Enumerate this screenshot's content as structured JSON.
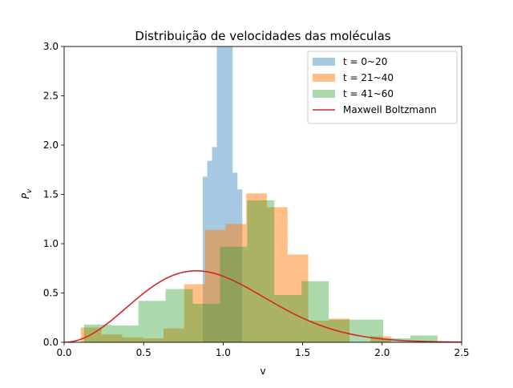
{
  "chart_data": {
    "type": "bar",
    "title": "Distribuição de velocidades das moléculas",
    "xlabel": "v",
    "ylabel_base": "P",
    "ylabel_sub": "v",
    "xlim": [
      0,
      2.5
    ],
    "ylim": [
      0,
      3.0
    ],
    "xticks": [
      0.0,
      0.5,
      1.0,
      1.5,
      2.0,
      2.5
    ],
    "xtick_labels": [
      "0.0",
      "0.5",
      "1.0",
      "1.5",
      "2.0",
      "2.5"
    ],
    "yticks": [
      0.0,
      0.5,
      1.0,
      1.5,
      2.0,
      2.5,
      3.0
    ],
    "ytick_labels": [
      "0.0",
      "0.5",
      "1.0",
      "1.5",
      "2.0",
      "2.5",
      "3.0"
    ],
    "grid": false,
    "legend_position": "top-right",
    "series": [
      {
        "name": "t = 0~20",
        "kind": "histogram",
        "color": "#1f77b4",
        "opacity": 0.4,
        "bin_edges": [
          0.872,
          0.9,
          0.93,
          0.96,
          0.99,
          1.02,
          1.06,
          1.09,
          1.12
        ],
        "heights": [
          1.68,
          1.84,
          1.98,
          3.0,
          3.0,
          3.0,
          1.72,
          1.55
        ]
      },
      {
        "name": "t = 21~40",
        "kind": "histogram",
        "color": "#ff7f0e",
        "opacity": 0.5,
        "bin_edges": [
          0.105,
          0.235,
          0.365,
          0.495,
          0.625,
          0.755,
          0.885,
          1.015,
          1.145,
          1.275,
          1.405,
          1.535,
          1.665,
          1.795,
          1.925,
          2.055
        ],
        "heights": [
          0.15,
          0.08,
          0.05,
          0.04,
          0.14,
          0.59,
          1.14,
          1.2,
          1.51,
          1.37,
          0.89,
          0.22,
          0.24,
          0.0,
          0.06
        ]
      },
      {
        "name": "t = 41~60",
        "kind": "histogram",
        "color": "#2ca02c",
        "opacity": 0.4,
        "bin_edges": [
          0.125,
          0.296,
          0.467,
          0.638,
          0.809,
          0.98,
          1.151,
          1.322,
          1.493,
          1.664,
          1.835,
          2.006,
          2.177,
          2.348,
          2.519
        ],
        "heights": [
          0.18,
          0.17,
          0.42,
          0.54,
          0.39,
          0.97,
          1.44,
          0.48,
          0.62,
          0.23,
          0.23,
          0.04,
          0.07,
          0.0
        ]
      },
      {
        "name": "Maxwell Boltzmann",
        "kind": "line",
        "color": "#d62728",
        "opacity": 1.0,
        "mode_v": 0.83,
        "peak": 0.725
      }
    ]
  }
}
